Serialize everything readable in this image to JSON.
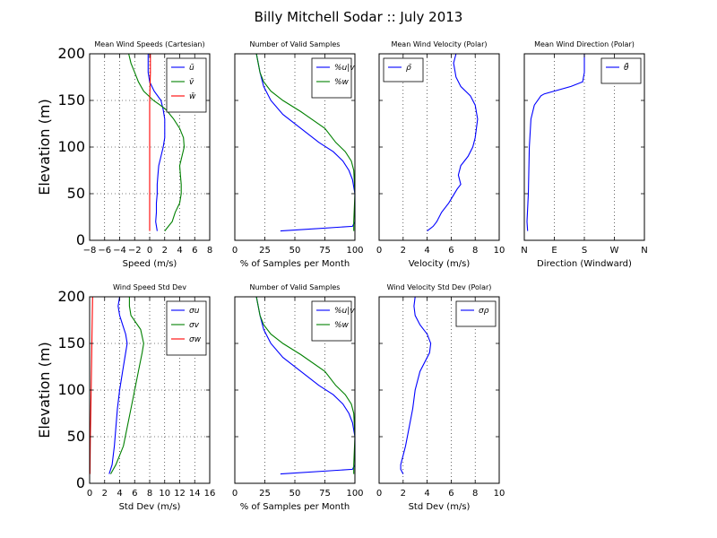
{
  "figure": {
    "title": "Billy Mitchell Sodar :: July 2013"
  },
  "chart_data": [
    {
      "id": "mean_wind_speeds",
      "type": "line",
      "title": "Mean Wind Speeds (Cartesian)",
      "xlabel": "Speed (m/s)",
      "ylabel": "Elevation (m)",
      "xlim": [
        -8,
        8
      ],
      "ylim": [
        0,
        200
      ],
      "xticks": [
        -8,
        -6,
        -4,
        -2,
        0,
        2,
        4,
        6,
        8
      ],
      "xtick_labels": [
        "−8",
        "−6",
        "−4",
        "−2",
        "0",
        "2",
        "4",
        "6",
        "8"
      ],
      "yticks": [
        0,
        50,
        100,
        150,
        200
      ],
      "xgrid": true,
      "ygrid": true,
      "legend_position": "top-right",
      "series": [
        {
          "name": "ū",
          "color": "#0000ff",
          "points": [
            [
              1,
              10
            ],
            [
              0.8,
              20
            ],
            [
              0.9,
              30
            ],
            [
              0.9,
              40
            ],
            [
              1,
              50
            ],
            [
              1,
              60
            ],
            [
              1.1,
              70
            ],
            [
              1.2,
              80
            ],
            [
              1.5,
              90
            ],
            [
              1.8,
              100
            ],
            [
              2,
              110
            ],
            [
              2,
              120
            ],
            [
              2,
              130
            ],
            [
              1.8,
              140
            ],
            [
              1.5,
              150
            ],
            [
              0.6,
              160
            ],
            [
              0,
              170
            ],
            [
              -0.2,
              180
            ],
            [
              -0.2,
              190
            ],
            [
              -0.2,
              200
            ]
          ]
        },
        {
          "name": "v̄",
          "color": "#008000",
          "points": [
            [
              2,
              10
            ],
            [
              2.5,
              15
            ],
            [
              3,
              20
            ],
            [
              3.4,
              30
            ],
            [
              4,
              40
            ],
            [
              4.2,
              50
            ],
            [
              4.2,
              60
            ],
            [
              4.1,
              70
            ],
            [
              4,
              80
            ],
            [
              4.3,
              90
            ],
            [
              4.6,
              100
            ],
            [
              4.5,
              110
            ],
            [
              4,
              120
            ],
            [
              3.2,
              130
            ],
            [
              2.2,
              140
            ],
            [
              1.4,
              145
            ],
            [
              0.5,
              150
            ],
            [
              -0.8,
              160
            ],
            [
              -1.5,
              170
            ],
            [
              -2,
              180
            ],
            [
              -2.5,
              190
            ],
            [
              -2.8,
              200
            ]
          ]
        },
        {
          "name": "w̄",
          "color": "#ff0000",
          "points": [
            [
              0,
              10
            ],
            [
              0,
              50
            ],
            [
              0,
              100
            ],
            [
              0,
              150
            ],
            [
              0.1,
              180
            ],
            [
              0.1,
              200
            ]
          ]
        }
      ]
    },
    {
      "id": "valid_samples_top",
      "type": "line",
      "title": "Number of Valid Samples",
      "xlabel": "% of Samples per Month",
      "ylim": [
        0,
        200
      ],
      "xlim": [
        0,
        100
      ],
      "xticks": [
        0,
        25,
        50,
        75,
        100
      ],
      "xgrid": true,
      "ygrid": false,
      "legend_position": "top-right",
      "series": [
        {
          "name": "%u|v",
          "color": "#0000ff",
          "points": [
            [
              38,
              10
            ],
            [
              98,
              15
            ],
            [
              100,
              20
            ],
            [
              100,
              50
            ],
            [
              98,
              65
            ],
            [
              95,
              75
            ],
            [
              90,
              85
            ],
            [
              82,
              95
            ],
            [
              70,
              105
            ],
            [
              55,
              120
            ],
            [
              40,
              135
            ],
            [
              30,
              150
            ],
            [
              24,
              165
            ],
            [
              21,
              180
            ],
            [
              18,
              200
            ]
          ]
        },
        {
          "name": "%w",
          "color": "#008000",
          "points": [
            [
              99,
              10
            ],
            [
              99,
              20
            ],
            [
              100,
              50
            ],
            [
              99,
              75
            ],
            [
              97,
              85
            ],
            [
              92,
              95
            ],
            [
              84,
              105
            ],
            [
              75,
              120
            ],
            [
              55,
              138
            ],
            [
              40,
              150
            ],
            [
              30,
              160
            ],
            [
              24,
              170
            ],
            [
              21,
              180
            ],
            [
              18,
              200
            ]
          ]
        }
      ]
    },
    {
      "id": "mean_wind_velocity_polar",
      "type": "line",
      "title": "Mean Wind Velocity (Polar)",
      "xlabel": "Velocity (m/s)",
      "ylim": [
        0,
        200
      ],
      "xlim": [
        0,
        10
      ],
      "xticks": [
        0,
        2,
        4,
        6,
        8,
        10
      ],
      "xgrid": true,
      "ygrid": false,
      "legend_position": "top-left",
      "series": [
        {
          "name": "ρ̄",
          "color": "#0000ff",
          "points": [
            [
              4,
              10
            ],
            [
              4.5,
              15
            ],
            [
              4.8,
              20
            ],
            [
              5.2,
              30
            ],
            [
              5.8,
              40
            ],
            [
              6.5,
              55
            ],
            [
              6.8,
              60
            ],
            [
              6.6,
              70
            ],
            [
              6.8,
              80
            ],
            [
              7.4,
              90
            ],
            [
              7.8,
              100
            ],
            [
              8,
              110
            ],
            [
              8.2,
              130
            ],
            [
              8,
              145
            ],
            [
              7.6,
              155
            ],
            [
              6.8,
              165
            ],
            [
              6.4,
              175
            ],
            [
              6.2,
              190
            ],
            [
              6.4,
              200
            ]
          ]
        }
      ]
    },
    {
      "id": "mean_wind_direction_polar",
      "type": "line",
      "title": "Mean Wind Direction (Polar)",
      "xlabel": "Direction (Windward)",
      "ylim": [
        0,
        200
      ],
      "xlim": [
        0,
        360
      ],
      "xticks": [
        0,
        90,
        180,
        270,
        360
      ],
      "xtick_labels": [
        "N",
        "E",
        "S",
        "W",
        "N"
      ],
      "xgrid": true,
      "ygrid": false,
      "legend_position": "top-right",
      "series": [
        {
          "name": "θ̄",
          "color": "#0000ff",
          "points": [
            [
              10,
              10
            ],
            [
              8,
              20
            ],
            [
              12,
              50
            ],
            [
              15,
              100
            ],
            [
              20,
              130
            ],
            [
              30,
              145
            ],
            [
              50,
              155
            ],
            [
              60,
              157
            ],
            [
              140,
              165
            ],
            [
              175,
              170
            ],
            [
              180,
              180
            ],
            [
              180,
              200
            ]
          ]
        }
      ]
    },
    {
      "id": "wind_speed_std_dev",
      "type": "line",
      "title": "Wind Speed Std Dev",
      "xlabel": "Std Dev (m/s)",
      "ylabel": "Elevation (m)",
      "xlim": [
        0,
        16
      ],
      "ylim": [
        0,
        200
      ],
      "xticks": [
        0,
        2,
        4,
        6,
        8,
        10,
        12,
        14,
        16
      ],
      "yticks": [
        0,
        50,
        100,
        150,
        200
      ],
      "xgrid": true,
      "ygrid": true,
      "legend_position": "top-right",
      "series": [
        {
          "name": "σu",
          "color": "#0000ff",
          "points": [
            [
              2.6,
              10
            ],
            [
              3,
              20
            ],
            [
              3.3,
              40
            ],
            [
              3.5,
              60
            ],
            [
              3.7,
              80
            ],
            [
              4,
              100
            ],
            [
              4.4,
              120
            ],
            [
              4.8,
              140
            ],
            [
              5,
              150
            ],
            [
              4.8,
              160
            ],
            [
              4.4,
              170
            ],
            [
              4,
              180
            ],
            [
              3.8,
              190
            ],
            [
              4,
              200
            ]
          ]
        },
        {
          "name": "σv",
          "color": "#008000",
          "points": [
            [
              2.8,
              10
            ],
            [
              3.5,
              20
            ],
            [
              4.5,
              40
            ],
            [
              5,
              60
            ],
            [
              5.5,
              80
            ],
            [
              6,
              100
            ],
            [
              6.5,
              120
            ],
            [
              7,
              140
            ],
            [
              7.2,
              150
            ],
            [
              6.8,
              165
            ],
            [
              5.5,
              180
            ],
            [
              5.3,
              190
            ],
            [
              5.3,
              200
            ]
          ]
        },
        {
          "name": "σw",
          "color": "#ff0000",
          "points": [
            [
              0.05,
              10
            ],
            [
              0.1,
              50
            ],
            [
              0.2,
              100
            ],
            [
              0.3,
              150
            ],
            [
              0.4,
              200
            ]
          ]
        }
      ]
    },
    {
      "id": "valid_samples_bottom",
      "type": "line",
      "title": "Number of Valid Samples",
      "xlabel": "% of Samples per Month",
      "ylim": [
        0,
        200
      ],
      "xlim": [
        0,
        100
      ],
      "xticks": [
        0,
        25,
        50,
        75,
        100
      ],
      "xgrid": true,
      "ygrid": false,
      "legend_position": "top-right",
      "series": [
        {
          "name": "%u|v",
          "color": "#0000ff",
          "points": [
            [
              38,
              10
            ],
            [
              98,
              15
            ],
            [
              100,
              20
            ],
            [
              100,
              50
            ],
            [
              98,
              65
            ],
            [
              95,
              75
            ],
            [
              90,
              85
            ],
            [
              82,
              95
            ],
            [
              70,
              105
            ],
            [
              55,
              120
            ],
            [
              40,
              135
            ],
            [
              30,
              150
            ],
            [
              24,
              165
            ],
            [
              21,
              180
            ],
            [
              18,
              200
            ]
          ]
        },
        {
          "name": "%w",
          "color": "#008000",
          "points": [
            [
              99,
              10
            ],
            [
              99,
              20
            ],
            [
              100,
              50
            ],
            [
              99,
              75
            ],
            [
              97,
              85
            ],
            [
              92,
              95
            ],
            [
              84,
              105
            ],
            [
              75,
              120
            ],
            [
              55,
              138
            ],
            [
              40,
              150
            ],
            [
              30,
              160
            ],
            [
              24,
              170
            ],
            [
              21,
              180
            ],
            [
              18,
              200
            ]
          ]
        }
      ]
    },
    {
      "id": "wind_velocity_std_dev_polar",
      "type": "line",
      "title": "Wind Velocity Std Dev (Polar)",
      "xlabel": "Std Dev (m/s)",
      "ylim": [
        0,
        200
      ],
      "xlim": [
        0,
        10
      ],
      "xticks": [
        0,
        2,
        4,
        6,
        8,
        10
      ],
      "xgrid": true,
      "ygrid": false,
      "legend_position": "top-right",
      "series": [
        {
          "name": "σρ",
          "color": "#0000ff",
          "points": [
            [
              2,
              10
            ],
            [
              1.8,
              15
            ],
            [
              1.8,
              20
            ],
            [
              2,
              30
            ],
            [
              2.2,
              40
            ],
            [
              2.5,
              60
            ],
            [
              2.8,
              80
            ],
            [
              3,
              100
            ],
            [
              3.4,
              120
            ],
            [
              4.2,
              140
            ],
            [
              4.3,
              150
            ],
            [
              4,
              160
            ],
            [
              3.4,
              170
            ],
            [
              3,
              180
            ],
            [
              2.9,
              190
            ],
            [
              3,
              200
            ]
          ]
        }
      ]
    }
  ]
}
